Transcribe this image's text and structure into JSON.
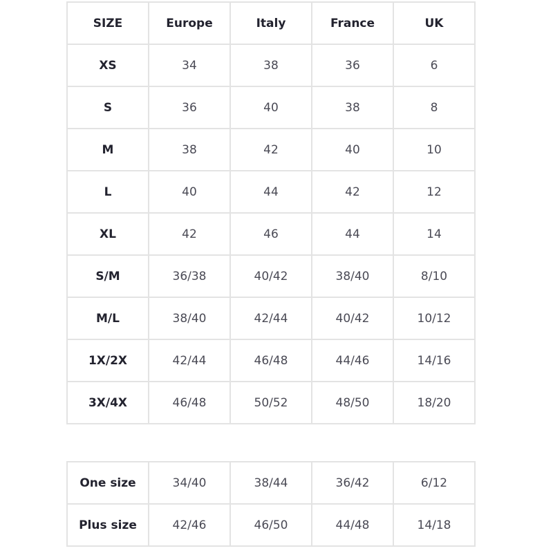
{
  "size_table": {
    "headers": [
      "SIZE",
      "Europe",
      "Italy",
      "France",
      "UK"
    ],
    "rows": [
      [
        "XS",
        "34",
        "38",
        "36",
        "6"
      ],
      [
        "S",
        "36",
        "40",
        "38",
        "8"
      ],
      [
        "M",
        "38",
        "42",
        "40",
        "10"
      ],
      [
        "L",
        "40",
        "44",
        "42",
        "12"
      ],
      [
        "XL",
        "42",
        "46",
        "44",
        "14"
      ],
      [
        "S/M",
        "36/38",
        "40/42",
        "38/40",
        "8/10"
      ],
      [
        "M/L",
        "38/40",
        "42/44",
        "40/42",
        "10/12"
      ],
      [
        "1X/2X",
        "42/44",
        "46/48",
        "44/46",
        "14/16"
      ],
      [
        "3X/4X",
        "46/48",
        "50/52",
        "48/50",
        "18/20"
      ]
    ]
  },
  "special_table": {
    "rows": [
      [
        "One size",
        "34/40",
        "38/44",
        "36/42",
        "6/12"
      ],
      [
        "Plus size",
        "42/46",
        "46/50",
        "44/48",
        "14/18"
      ]
    ]
  },
  "colors": {
    "border": "#e3e3e3",
    "heading_text": "#23232f",
    "value_text": "#4a4a55"
  }
}
